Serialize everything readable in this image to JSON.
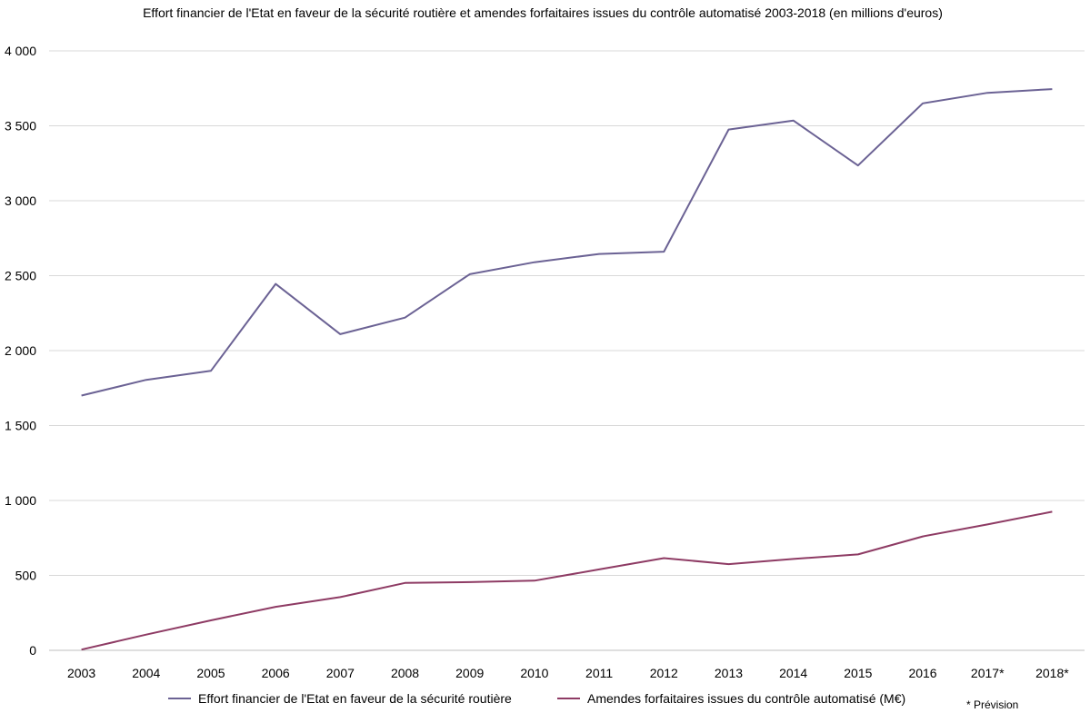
{
  "chart_data": {
    "type": "line",
    "title": "Effort financier de l'Etat en faveur de la sécurité routière et amendes forfaitaires issues du contrôle automatisé 2003-2018 (en millions d'euros)",
    "categories": [
      "2003",
      "2004",
      "2005",
      "2006",
      "2007",
      "2008",
      "2009",
      "2010",
      "2011",
      "2012",
      "2013",
      "2014",
      "2015",
      "2016",
      "2017*",
      "2018*"
    ],
    "series": [
      {
        "name": "Effort financier de l'Etat en faveur de la sécurité routière",
        "color": "#6b6294",
        "values": [
          1700,
          1805,
          1865,
          2445,
          2110,
          2220,
          2510,
          2590,
          2645,
          2660,
          3475,
          3535,
          3235,
          3650,
          3720,
          3745
        ]
      },
      {
        "name": "Amendes forfaitaires issues du contrôle automatisé (M€)",
        "color": "#8e3b64",
        "values": [
          5,
          105,
          200,
          290,
          355,
          450,
          455,
          465,
          540,
          615,
          575,
          610,
          640,
          760,
          840,
          925
        ]
      }
    ],
    "ylim": [
      0,
      4000
    ],
    "yticks": [
      0,
      500,
      1000,
      1500,
      2000,
      2500,
      3000,
      3500,
      4000
    ],
    "ytick_labels": [
      "0",
      "500",
      "1 000",
      "1 500",
      "2 000",
      "2 500",
      "3 000",
      "3 500",
      "4 000"
    ],
    "xlabel": "",
    "ylabel": "",
    "grid": true,
    "legend": "bottom",
    "note": "* Prévision"
  }
}
